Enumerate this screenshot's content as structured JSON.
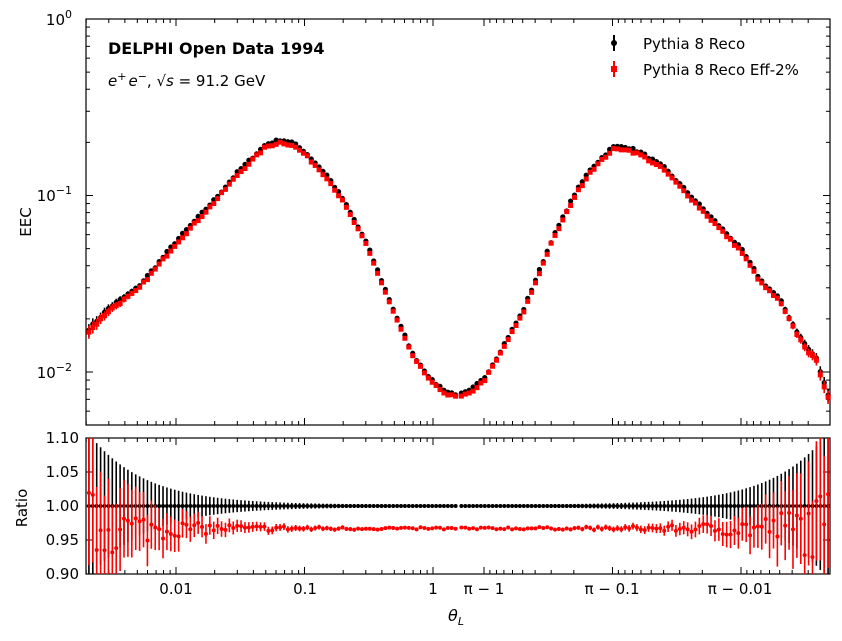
{
  "chart_data": [
    {
      "type": "scatter",
      "panel": "main",
      "title": "DELPHI Open Data 1994",
      "subtitle_prefix": "e",
      "subtitle_sup": "+",
      "subtitle_mid": "e",
      "subtitle_sup2": "−",
      "subtitle_sqrt": "√s",
      "subtitle_suffix": " = 91.2 GeV",
      "ylabel": "EEC",
      "yscale": "log",
      "ylim": [
        0.0052,
        1.0
      ],
      "yticks": [
        {
          "base": "10",
          "exp": "−2",
          "value": 0.01
        },
        {
          "base": "10",
          "exp": "−1",
          "value": 0.1
        },
        {
          "base": "10",
          "exp": "0",
          "value": 1.0
        }
      ],
      "xaxis": "symlog-theta",
      "x_bins_per_side": 95,
      "series": [
        {
          "name": "Pythia 8 Reco",
          "color": "#000000",
          "marker": "circle",
          "scale": 1.0
        },
        {
          "name": "Pythia 8 Reco Eff-2%",
          "color": "#ff0000",
          "marker": "square",
          "scale": 0.967
        }
      ],
      "shape_knots_left": [
        [
          0.0021,
          0.0175
        ],
        [
          0.003,
          0.023
        ],
        [
          0.005,
          0.03
        ],
        [
          0.007,
          0.04
        ],
        [
          0.01,
          0.055
        ],
        [
          0.02,
          0.095
        ],
        [
          0.03,
          0.135
        ],
        [
          0.05,
          0.195
        ],
        [
          0.065,
          0.207
        ],
        [
          0.08,
          0.2
        ],
        [
          0.1,
          0.178
        ],
        [
          0.15,
          0.13
        ],
        [
          0.2,
          0.095
        ],
        [
          0.3,
          0.055
        ],
        [
          0.5,
          0.022
        ],
        [
          0.7,
          0.0125
        ],
        [
          1.0,
          0.0088
        ],
        [
          1.3,
          0.0077
        ],
        [
          1.5,
          0.0075
        ]
      ],
      "shape_knots_right": [
        [
          1.5,
          0.0075
        ],
        [
          1.3,
          0.0078
        ],
        [
          1.0,
          0.0092
        ],
        [
          0.8,
          0.012
        ],
        [
          0.6,
          0.0175
        ],
        [
          0.5,
          0.022
        ],
        [
          0.3,
          0.055
        ],
        [
          0.2,
          0.1
        ],
        [
          0.15,
          0.14
        ],
        [
          0.1,
          0.188
        ],
        [
          0.08,
          0.19
        ],
        [
          0.06,
          0.175
        ],
        [
          0.04,
          0.145
        ],
        [
          0.02,
          0.085
        ],
        [
          0.01,
          0.05
        ],
        [
          0.007,
          0.033
        ],
        [
          0.005,
          0.026
        ],
        [
          0.004,
          0.019
        ],
        [
          0.0035,
          0.016
        ],
        [
          0.003,
          0.0135
        ],
        [
          0.0026,
          0.012
        ],
        [
          0.0023,
          0.009
        ],
        [
          0.0021,
          0.0075
        ]
      ]
    },
    {
      "type": "scatter",
      "panel": "ratio",
      "ylabel": "Ratio",
      "ylim": [
        0.9,
        1.1
      ],
      "yticks": [
        "0.90",
        "0.95",
        "1.00",
        "1.05",
        "1.10"
      ],
      "xlabel": "θ",
      "xlabel_sub": "L",
      "xticks": [
        "0.01",
        "0.1",
        "1",
        "π − 1",
        "π − 0.1",
        "π − 0.01"
      ],
      "series": [
        {
          "name": "Pythia 8 Reco",
          "color": "#000000",
          "ratio": 1.0
        },
        {
          "name": "Pythia 8 Reco Eff-2%",
          "color": "#ff0000",
          "ratio": 0.967
        }
      ]
    }
  ]
}
